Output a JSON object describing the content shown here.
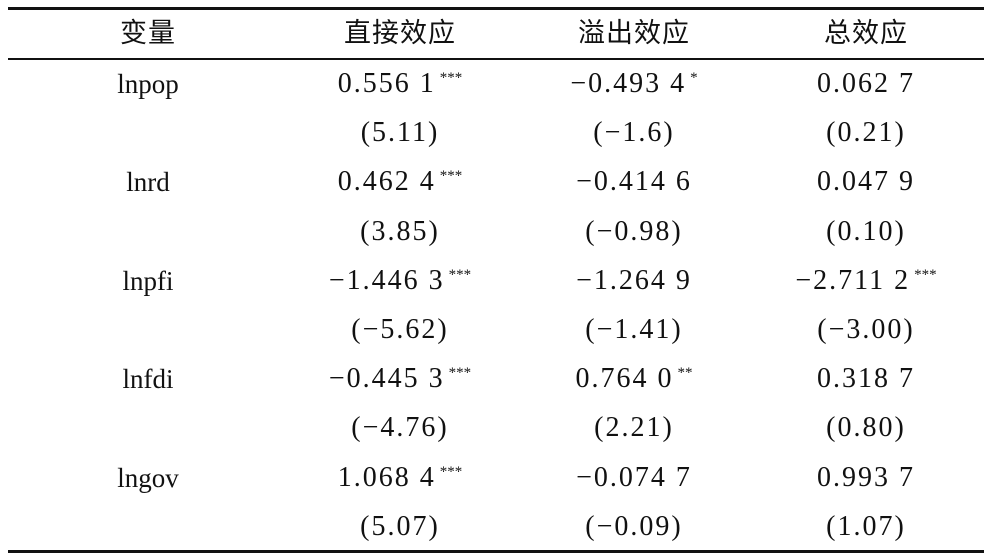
{
  "table": {
    "header": [
      "变量",
      "直接效应",
      "溢出效应",
      "总效应"
    ],
    "rows": [
      {
        "variable": "lnpop",
        "cells": [
          {
            "value": "0.556 1",
            "stars": "***"
          },
          {
            "value": "−0.493 4",
            "stars": "*"
          },
          {
            "value": "0.062 7"
          }
        ],
        "tstats": [
          "(5.11)",
          "(−1.6)",
          "(0.21)"
        ]
      },
      {
        "variable": "lnrd",
        "cells": [
          {
            "value": "0.462 4",
            "stars": "***"
          },
          {
            "value": "−0.414 6"
          },
          {
            "value": "0.047 9"
          }
        ],
        "tstats": [
          "(3.85)",
          "(−0.98)",
          "(0.10)"
        ]
      },
      {
        "variable": "lnpfi",
        "cells": [
          {
            "value": "−1.446 3",
            "stars": "***"
          },
          {
            "value": "−1.264 9"
          },
          {
            "value": "−2.711 2",
            "stars": "***"
          }
        ],
        "tstats": [
          "(−5.62)",
          "(−1.41)",
          "(−3.00)"
        ]
      },
      {
        "variable": "lnfdi",
        "cells": [
          {
            "value": "−0.445 3",
            "stars": "***"
          },
          {
            "value": "0.764 0",
            "stars": "**"
          },
          {
            "value": "0.318 7"
          }
        ],
        "tstats": [
          "(−4.76)",
          "(2.21)",
          "(0.80)"
        ]
      },
      {
        "variable": "lngov",
        "cells": [
          {
            "value": "1.068 4",
            "stars": "***"
          },
          {
            "value": "−0.074 7"
          },
          {
            "value": "0.993 7"
          }
        ],
        "tstats": [
          "(5.07)",
          "(−0.09)",
          "(1.07)"
        ]
      }
    ]
  }
}
